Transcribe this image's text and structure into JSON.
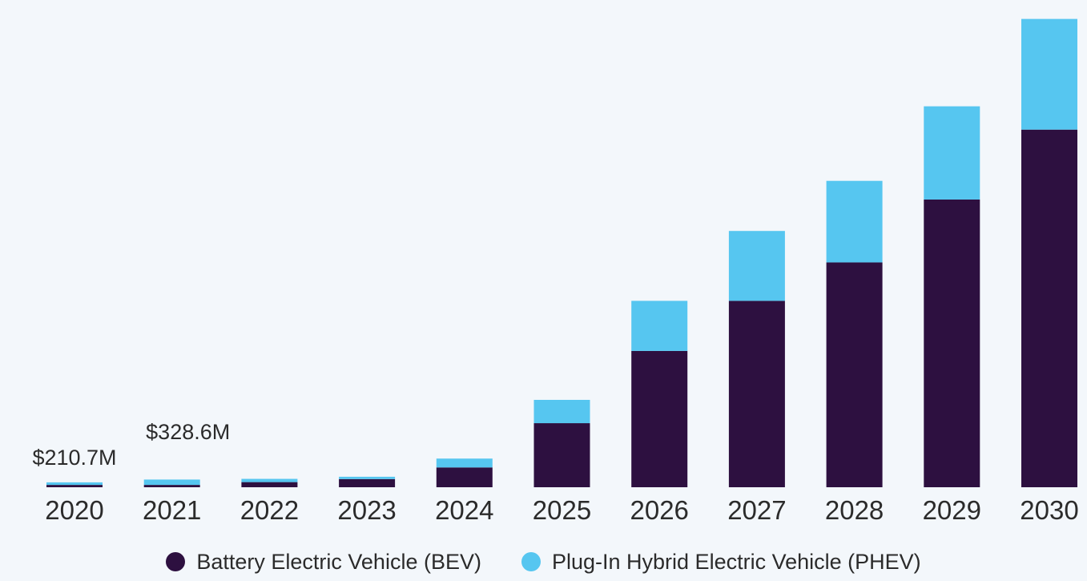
{
  "chart_data": {
    "type": "bar",
    "stacked": true,
    "categories": [
      "2020",
      "2021",
      "2022",
      "2023",
      "2024",
      "2025",
      "2026",
      "2027",
      "2028",
      "2029",
      "2030"
    ],
    "series": [
      {
        "name": "Battery Electric Vehicle (BEV)",
        "color": "#2d1040",
        "values": [
          0.1,
          0.1,
          0.22,
          0.35,
          0.85,
          2.75,
          5.85,
          8.0,
          9.65,
          12.35,
          15.35
        ]
      },
      {
        "name": "Plug-In Hybrid Electric Vehicle (PHEV)",
        "color": "#56c6f0",
        "values": [
          0.11,
          0.23,
          0.14,
          0.1,
          0.38,
          1.0,
          2.15,
          3.0,
          3.5,
          4.0,
          4.75
        ]
      }
    ],
    "data_labels": [
      {
        "category": "2020",
        "text": "$210.7M"
      },
      {
        "category": "2021",
        "text": "$328.6M"
      }
    ],
    "ylim": [
      0,
      20.5
    ],
    "grid": false,
    "legend_position": "bottom-center"
  }
}
